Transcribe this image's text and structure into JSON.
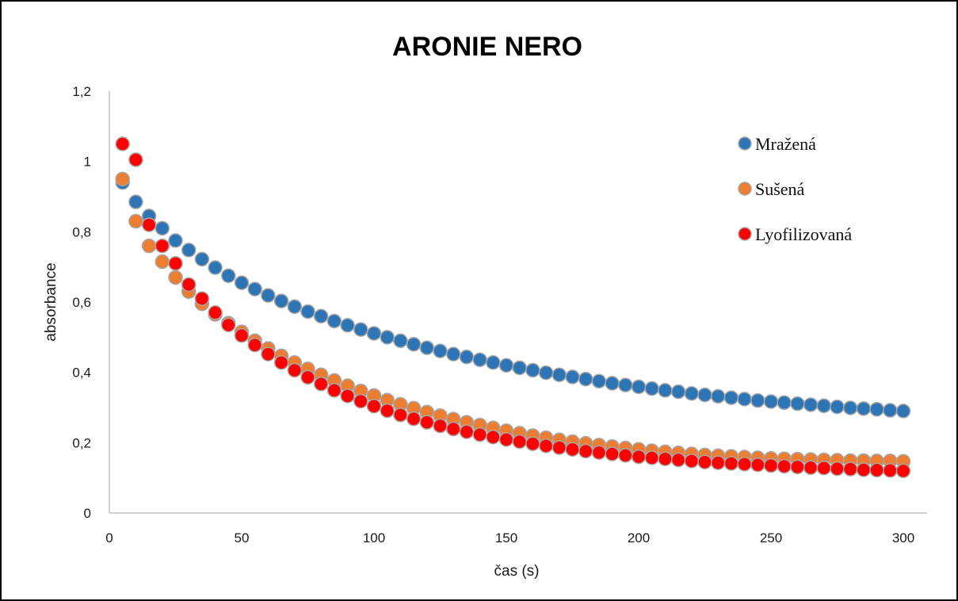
{
  "chart_data": {
    "type": "scatter",
    "title": "ARONIE  NERO",
    "xlabel": "čas (s)",
    "ylabel": "absorbance",
    "xlim": [
      0,
      300
    ],
    "ylim": [
      0,
      1.2
    ],
    "x_ticks": [
      0,
      50,
      100,
      150,
      200,
      250,
      300
    ],
    "y_ticks": [
      0,
      0.2,
      0.4,
      0.6,
      0.8,
      1,
      1.2
    ],
    "x_tick_labels": [
      "0",
      "50",
      "100",
      "150",
      "200",
      "250",
      "300"
    ],
    "y_tick_labels": [
      "0",
      "0,2",
      "0,4",
      "0,6",
      "0,8",
      "1",
      "1,2"
    ],
    "grid": false,
    "legend_position": "right",
    "x": [
      5,
      10,
      15,
      20,
      25,
      30,
      35,
      40,
      45,
      50,
      55,
      60,
      65,
      70,
      75,
      80,
      85,
      90,
      95,
      100,
      105,
      110,
      115,
      120,
      125,
      130,
      135,
      140,
      145,
      150,
      155,
      160,
      165,
      170,
      175,
      180,
      185,
      190,
      195,
      200,
      205,
      210,
      215,
      220,
      225,
      230,
      235,
      240,
      245,
      250,
      255,
      260,
      265,
      270,
      275,
      280,
      285,
      290,
      295,
      300
    ],
    "series": [
      {
        "name": "Mražená",
        "color": "#2e75b6",
        "values": [
          0.94,
          0.885,
          0.845,
          0.81,
          0.775,
          0.748,
          0.722,
          0.698,
          0.675,
          0.655,
          0.637,
          0.619,
          0.603,
          0.587,
          0.573,
          0.56,
          0.546,
          0.534,
          0.522,
          0.511,
          0.5,
          0.49,
          0.48,
          0.47,
          0.461,
          0.452,
          0.444,
          0.436,
          0.428,
          0.42,
          0.413,
          0.406,
          0.399,
          0.393,
          0.387,
          0.381,
          0.375,
          0.369,
          0.364,
          0.359,
          0.354,
          0.349,
          0.345,
          0.34,
          0.336,
          0.332,
          0.328,
          0.324,
          0.32,
          0.317,
          0.314,
          0.311,
          0.308,
          0.305,
          0.302,
          0.299,
          0.297,
          0.295,
          0.292,
          0.29
        ]
      },
      {
        "name": "Sušená",
        "color": "#ed7d31",
        "values": [
          0.95,
          0.83,
          0.76,
          0.715,
          0.67,
          0.63,
          0.595,
          0.565,
          0.54,
          0.515,
          0.49,
          0.468,
          0.447,
          0.428,
          0.41,
          0.393,
          0.377,
          0.362,
          0.347,
          0.334,
          0.321,
          0.309,
          0.298,
          0.287,
          0.277,
          0.267,
          0.258,
          0.25,
          0.242,
          0.234,
          0.227,
          0.22,
          0.214,
          0.208,
          0.203,
          0.198,
          0.193,
          0.189,
          0.185,
          0.181,
          0.177,
          0.174,
          0.171,
          0.168,
          0.165,
          0.163,
          0.161,
          0.159,
          0.157,
          0.155,
          0.154,
          0.153,
          0.152,
          0.151,
          0.15,
          0.149,
          0.149,
          0.148,
          0.148,
          0.147
        ]
      },
      {
        "name": "Lyofilizovaná",
        "color": "#ff0000",
        "values": [
          1.05,
          1.005,
          0.82,
          0.76,
          0.71,
          0.65,
          0.61,
          0.57,
          0.535,
          0.505,
          0.478,
          0.452,
          0.428,
          0.406,
          0.386,
          0.367,
          0.349,
          0.333,
          0.318,
          0.304,
          0.291,
          0.279,
          0.268,
          0.258,
          0.248,
          0.239,
          0.231,
          0.223,
          0.216,
          0.209,
          0.203,
          0.197,
          0.191,
          0.186,
          0.181,
          0.176,
          0.172,
          0.168,
          0.164,
          0.16,
          0.157,
          0.154,
          0.151,
          0.148,
          0.145,
          0.143,
          0.141,
          0.139,
          0.137,
          0.135,
          0.133,
          0.131,
          0.129,
          0.128,
          0.126,
          0.125,
          0.123,
          0.122,
          0.121,
          0.12
        ]
      }
    ]
  }
}
